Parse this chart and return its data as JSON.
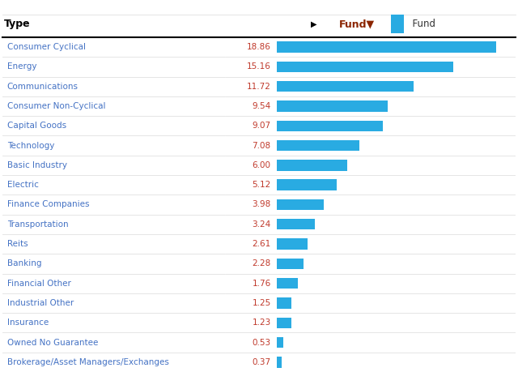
{
  "categories": [
    "Consumer Cyclical",
    "Energy",
    "Communications",
    "Consumer Non-Cyclical",
    "Capital Goods",
    "Technology",
    "Basic Industry",
    "Electric",
    "Finance Companies",
    "Transportation",
    "Reits",
    "Banking",
    "Financial Other",
    "Industrial Other",
    "Insurance",
    "Owned No Guarantee",
    "Brokerage/Asset Managers/Exchanges"
  ],
  "values": [
    18.86,
    15.16,
    11.72,
    9.54,
    9.07,
    7.08,
    6.0,
    5.12,
    3.98,
    3.24,
    2.61,
    2.28,
    1.76,
    1.25,
    1.23,
    0.53,
    0.37
  ],
  "bar_color": "#29ABE2",
  "legend_label": "Fund",
  "background_color": "#ffffff",
  "label_color": "#4472C4",
  "value_color": "#C0392B",
  "header_bg": "#ffffff",
  "separator_color": "#000000",
  "grid_color": "#e0e0e0",
  "bar_xlim": [
    0,
    20.5
  ],
  "figsize": [
    6.4,
    4.59
  ],
  "dpi": 100
}
